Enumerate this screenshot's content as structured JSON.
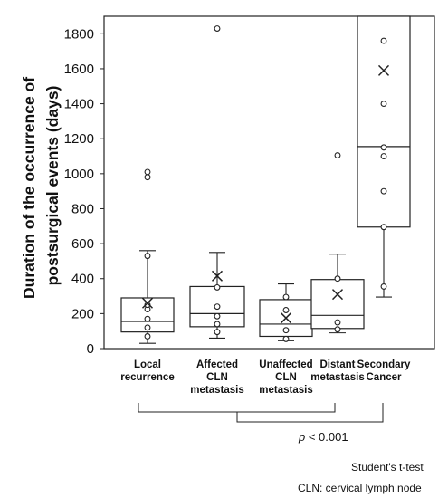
{
  "chart_data": {
    "type": "box",
    "title": "",
    "ylabel_lines": [
      "Duration of the occurrence of",
      "postsurgical events   (days)"
    ],
    "xlabel": "",
    "ylim": [
      0,
      1900
    ],
    "yticks": [
      0,
      200,
      400,
      600,
      800,
      1000,
      1200,
      1400,
      1600,
      1800
    ],
    "grid": false,
    "categories": [
      {
        "lines": [
          "Local",
          "recurrence"
        ],
        "whisker_low": 30,
        "q1": 95,
        "median": 155,
        "q3": 290,
        "whisker_high": 560,
        "mean": 260,
        "points": [
          70,
          120,
          170,
          225,
          250,
          530,
          980,
          1010
        ]
      },
      {
        "lines": [
          "Affected",
          "CLN",
          "metastasis"
        ],
        "whisker_low": 60,
        "q1": 125,
        "median": 200,
        "q3": 355,
        "whisker_high": 550,
        "mean": 415,
        "points": [
          95,
          140,
          185,
          240,
          350,
          1830
        ]
      },
      {
        "lines": [
          "Unaffected",
          "CLN",
          "metastasis"
        ],
        "whisker_low": 45,
        "q1": 70,
        "median": 140,
        "q3": 280,
        "whisker_high": 370,
        "mean": 175,
        "points": [
          55,
          105,
          220,
          295
        ]
      },
      {
        "lines": [
          "Distant",
          "metastasis"
        ],
        "whisker_low": 90,
        "q1": 115,
        "median": 190,
        "q3": 395,
        "whisker_high": 540,
        "mean": 310,
        "points": [
          110,
          150,
          400,
          1105
        ]
      },
      {
        "lines": [
          "Secondary",
          "Cancer"
        ],
        "whisker_low": 295,
        "q1": 695,
        "median": 1155,
        "q3": 1900,
        "whisker_high": 1900,
        "mean": 1590,
        "points": [
          355,
          695,
          900,
          1100,
          1150,
          1400,
          1760
        ]
      }
    ],
    "comparison": {
      "groups_from": [
        0,
        3
      ],
      "to": 4,
      "label_italic": "p",
      "label_rest": " < 0.001"
    },
    "notes": [
      "Student's t-test",
      "CLN:  cervical lymph node"
    ]
  }
}
